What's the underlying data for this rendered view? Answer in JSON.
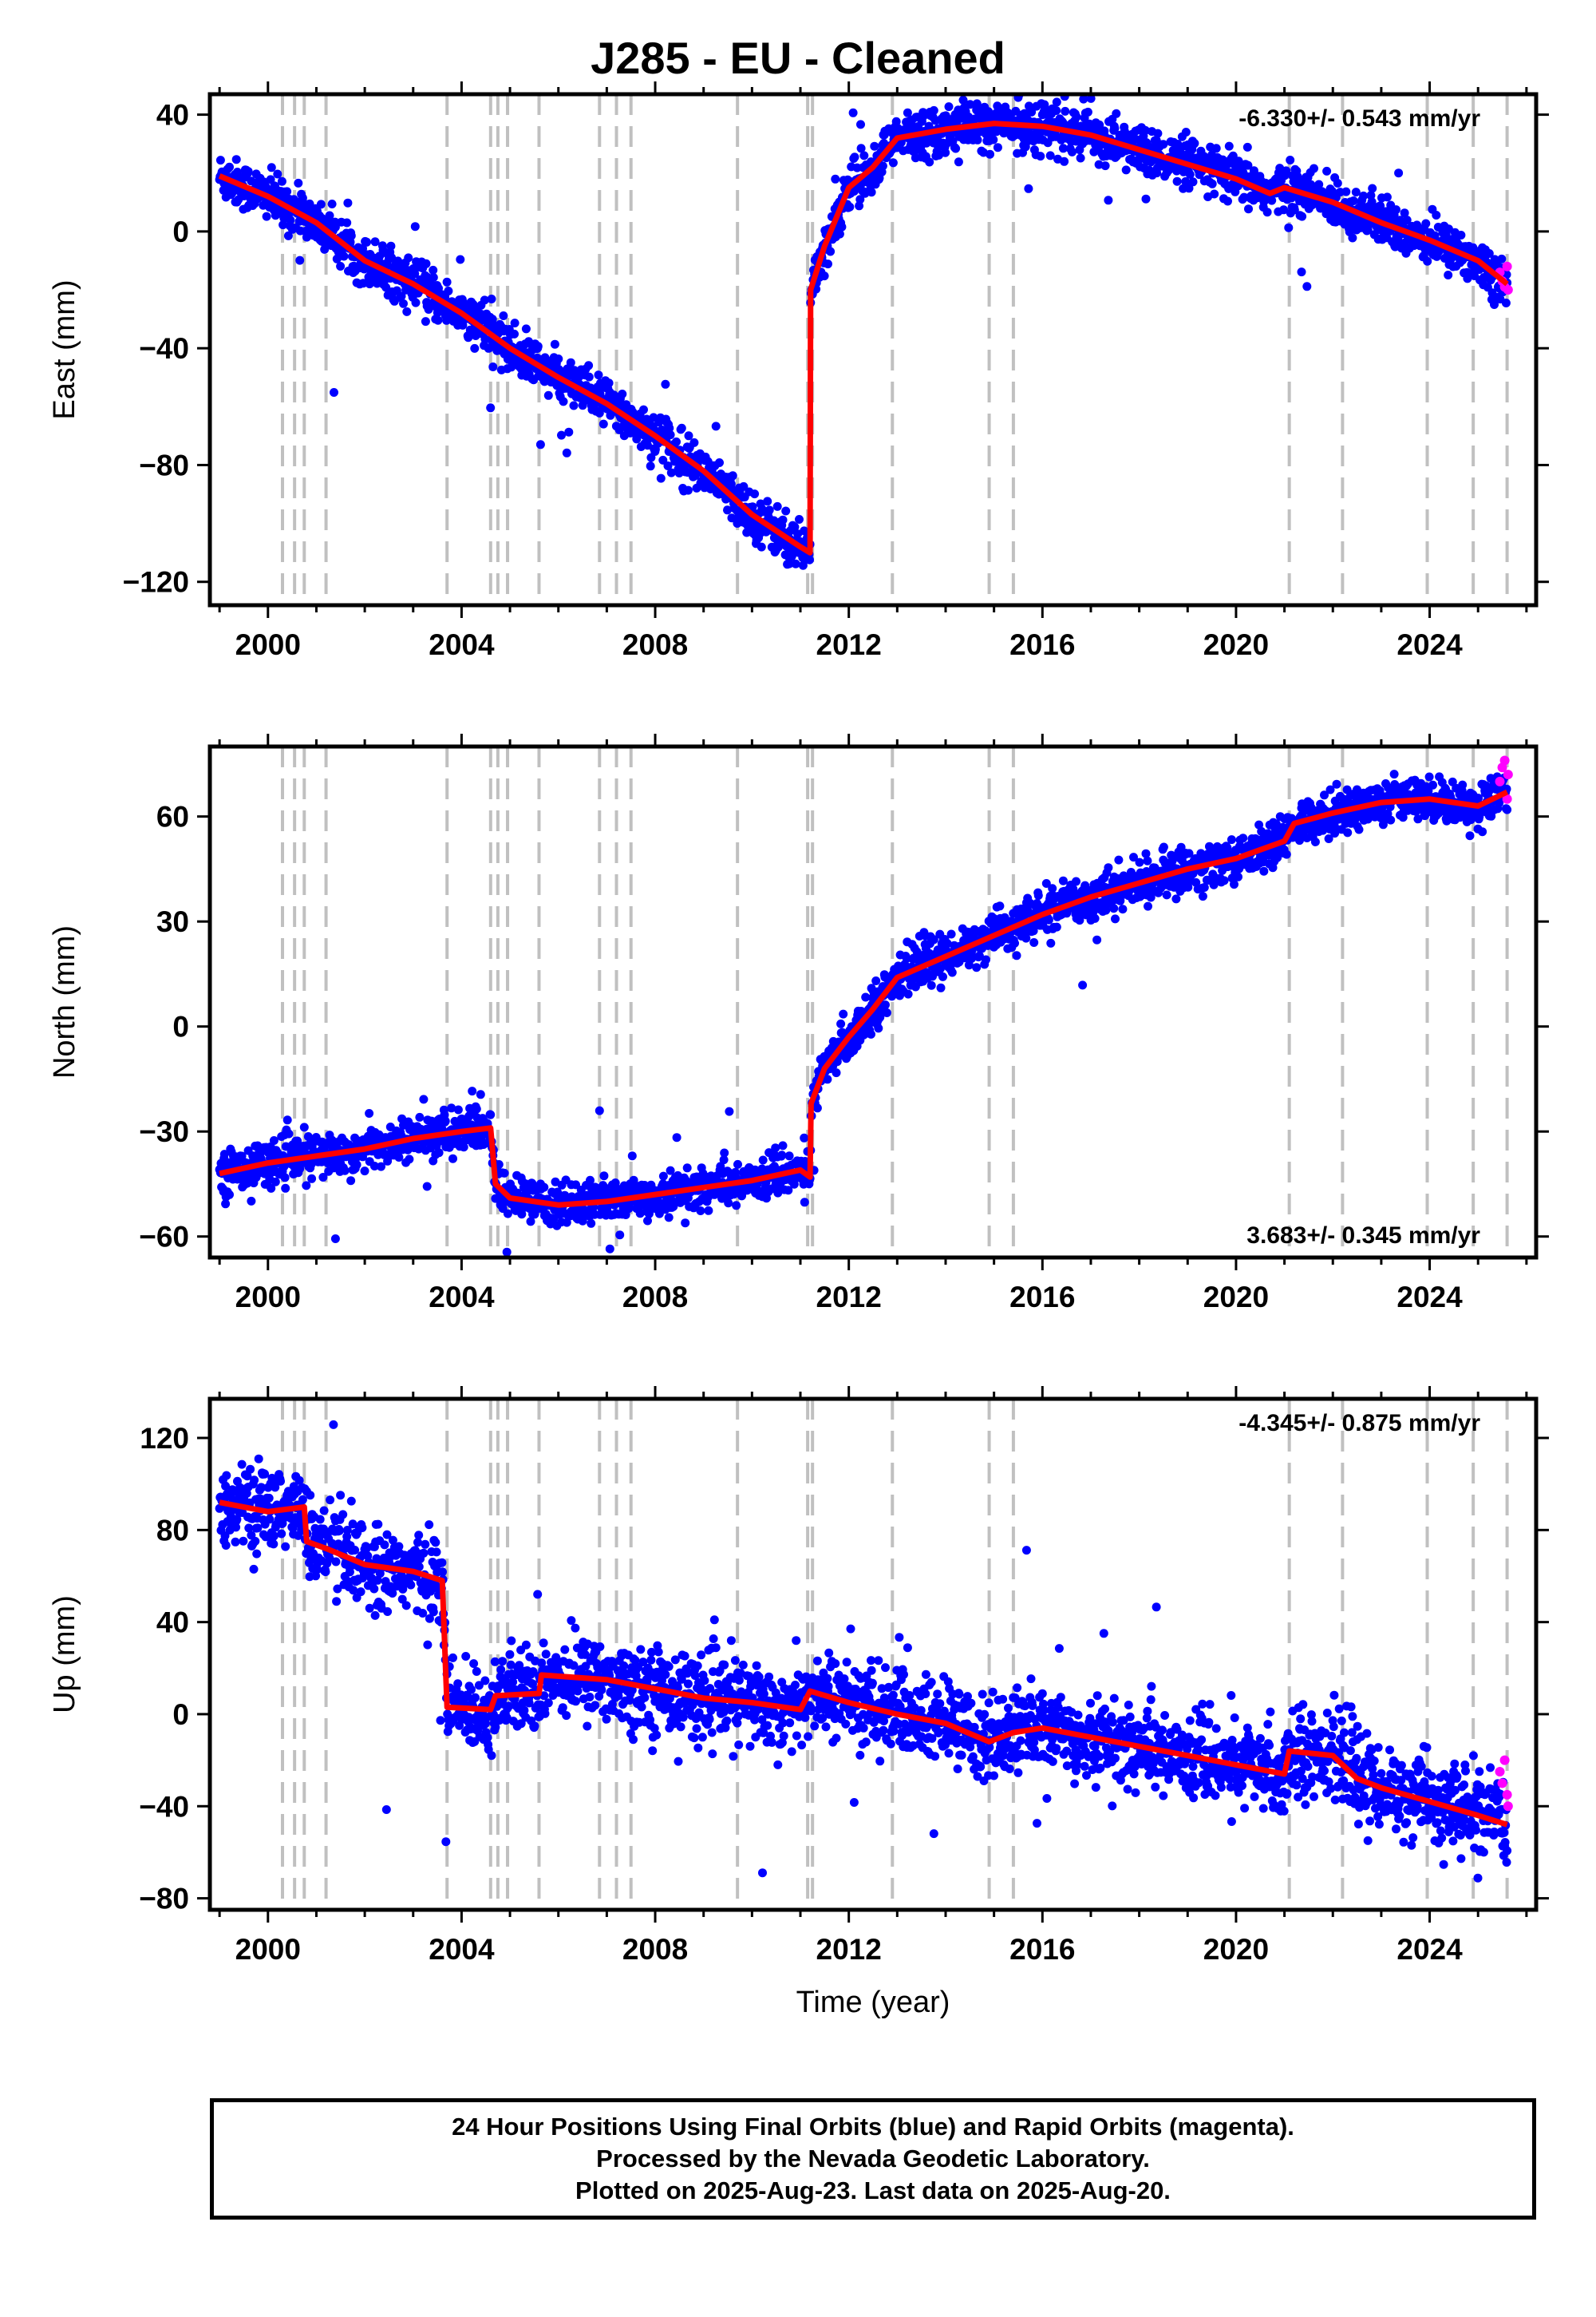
{
  "title": "J285  - EU - Cleaned",
  "xlabel": "Time (year)",
  "footer": [
    "24 Hour Positions Using Final Orbits (blue) and Rapid Orbits (magenta).",
    "Processed by the Nevada Geodetic Laboratory.",
    "Plotted on 2025-Aug-23. Last data on 2025-Aug-20."
  ],
  "colors": {
    "final": "#0000ff",
    "rapid": "#ff00ff",
    "model": "#ff0000",
    "events": "#c0c0c0"
  },
  "chart_data": [
    {
      "type": "scatter",
      "ylabel": "East (mm)",
      "rate_text": "-6.330+/- 0.543 mm/yr",
      "rate_position": "top-right",
      "xlim": [
        1998.8,
        2026.2
      ],
      "ylim": [
        -128,
        47
      ],
      "xticks": [
        2000,
        2004,
        2008,
        2012,
        2016,
        2020,
        2024
      ],
      "yticks": [
        -120,
        -80,
        -40,
        0,
        40
      ],
      "event_lines": [
        2000.3,
        2000.55,
        2000.75,
        2001.2,
        2003.7,
        2004.6,
        2004.75,
        2004.95,
        2005.6,
        2006.85,
        2007.2,
        2007.5,
        2009.7,
        2011.15,
        2011.25,
        2012.9,
        2014.9,
        2015.4,
        2021.1,
        2022.2,
        2023.95,
        2024.9,
        2025.6
      ],
      "model": [
        [
          1999.0,
          19
        ],
        [
          2000.0,
          12
        ],
        [
          2001.0,
          3
        ],
        [
          2002.0,
          -10
        ],
        [
          2003.0,
          -18
        ],
        [
          2004.0,
          -28
        ],
        [
          2005.0,
          -40
        ],
        [
          2006.0,
          -50
        ],
        [
          2007.0,
          -59
        ],
        [
          2008.0,
          -70
        ],
        [
          2009.0,
          -82
        ],
        [
          2010.0,
          -97
        ],
        [
          2011.0,
          -108
        ],
        [
          2011.2,
          -110
        ],
        [
          2011.21,
          -20
        ],
        [
          2011.5,
          -5
        ],
        [
          2012.0,
          15
        ],
        [
          2012.5,
          22
        ],
        [
          2013.0,
          32
        ],
        [
          2014.0,
          35
        ],
        [
          2015.0,
          37
        ],
        [
          2016.0,
          36
        ],
        [
          2017.0,
          33
        ],
        [
          2018.0,
          28
        ],
        [
          2019.0,
          23
        ],
        [
          2020.0,
          18
        ],
        [
          2020.7,
          13
        ],
        [
          2021.0,
          15
        ],
        [
          2022.0,
          10
        ],
        [
          2023.0,
          3
        ],
        [
          2024.0,
          -3
        ],
        [
          2025.0,
          -10
        ],
        [
          2025.6,
          -18
        ]
      ],
      "scatter_spread": 4,
      "rapid": [
        [
          2025.45,
          -14
        ],
        [
          2025.5,
          -17
        ],
        [
          2025.55,
          -19
        ],
        [
          2025.6,
          -12
        ],
        [
          2025.62,
          -20
        ]
      ]
    },
    {
      "type": "scatter",
      "ylabel": "North (mm)",
      "rate_text": "3.683+/- 0.345 mm/yr",
      "rate_position": "bottom-right",
      "xlim": [
        1998.8,
        2026.2
      ],
      "ylim": [
        -66,
        80
      ],
      "xticks": [
        2000,
        2004,
        2008,
        2012,
        2016,
        2020,
        2024
      ],
      "yticks": [
        -60,
        -30,
        0,
        30,
        60
      ],
      "event_lines": [
        2000.3,
        2000.55,
        2000.75,
        2001.2,
        2003.7,
        2004.6,
        2004.75,
        2004.95,
        2005.6,
        2006.85,
        2007.2,
        2007.5,
        2009.7,
        2011.15,
        2011.25,
        2012.9,
        2014.9,
        2015.4,
        2021.1,
        2022.2,
        2023.95,
        2024.9,
        2025.6
      ],
      "model": [
        [
          1999.0,
          -42
        ],
        [
          2000.0,
          -39
        ],
        [
          2001.0,
          -37
        ],
        [
          2002.0,
          -35
        ],
        [
          2003.0,
          -32
        ],
        [
          2004.0,
          -30
        ],
        [
          2004.6,
          -29
        ],
        [
          2004.7,
          -45
        ],
        [
          2005.0,
          -49
        ],
        [
          2006.0,
          -51
        ],
        [
          2007.0,
          -50
        ],
        [
          2008.0,
          -48
        ],
        [
          2009.0,
          -46
        ],
        [
          2010.0,
          -44
        ],
        [
          2011.0,
          -41
        ],
        [
          2011.2,
          -43
        ],
        [
          2011.22,
          -22
        ],
        [
          2011.5,
          -12
        ],
        [
          2012.0,
          -3
        ],
        [
          2012.5,
          5
        ],
        [
          2013.0,
          14
        ],
        [
          2014.0,
          20
        ],
        [
          2015.0,
          26
        ],
        [
          2016.0,
          32
        ],
        [
          2017.0,
          37
        ],
        [
          2018.0,
          41
        ],
        [
          2019.0,
          45
        ],
        [
          2020.0,
          48
        ],
        [
          2021.0,
          53
        ],
        [
          2021.2,
          58
        ],
        [
          2022.0,
          61
        ],
        [
          2023.0,
          64
        ],
        [
          2024.0,
          65
        ],
        [
          2025.0,
          63
        ],
        [
          2025.6,
          67
        ]
      ],
      "scatter_spread": 3,
      "rapid": [
        [
          2025.45,
          70
        ],
        [
          2025.5,
          74
        ],
        [
          2025.55,
          76
        ],
        [
          2025.6,
          65
        ],
        [
          2025.62,
          72
        ]
      ]
    },
    {
      "type": "scatter",
      "ylabel": "Up (mm)",
      "rate_text": "-4.345+/- 0.875 mm/yr",
      "rate_position": "top-right",
      "xlim": [
        1998.8,
        2026.2
      ],
      "ylim": [
        -85,
        137
      ],
      "xticks": [
        2000,
        2004,
        2008,
        2012,
        2016,
        2020,
        2024
      ],
      "yticks": [
        -80,
        -40,
        0,
        40,
        80,
        120
      ],
      "event_lines": [
        2000.3,
        2000.55,
        2000.75,
        2001.2,
        2003.7,
        2004.6,
        2004.75,
        2004.95,
        2005.6,
        2006.85,
        2007.2,
        2007.5,
        2009.7,
        2011.15,
        2011.25,
        2012.9,
        2014.9,
        2015.4,
        2021.1,
        2022.2,
        2023.95,
        2024.9,
        2025.6
      ],
      "model": [
        [
          1999.0,
          92
        ],
        [
          2000.0,
          88
        ],
        [
          2000.75,
          90
        ],
        [
          2000.8,
          75
        ],
        [
          2001.2,
          72
        ],
        [
          2002.0,
          65
        ],
        [
          2003.0,
          62
        ],
        [
          2003.6,
          58
        ],
        [
          2003.7,
          3
        ],
        [
          2004.6,
          2
        ],
        [
          2004.7,
          8
        ],
        [
          2005.6,
          9
        ],
        [
          2005.65,
          17
        ],
        [
          2007.0,
          15
        ],
        [
          2008.0,
          11
        ],
        [
          2009.0,
          7
        ],
        [
          2010.0,
          5
        ],
        [
          2011.0,
          2
        ],
        [
          2011.2,
          10
        ],
        [
          2012.0,
          5
        ],
        [
          2013.0,
          0
        ],
        [
          2014.0,
          -4
        ],
        [
          2014.9,
          -12
        ],
        [
          2015.4,
          -8
        ],
        [
          2016.0,
          -6
        ],
        [
          2017.0,
          -10
        ],
        [
          2018.0,
          -14
        ],
        [
          2019.0,
          -18
        ],
        [
          2020.0,
          -22
        ],
        [
          2021.0,
          -26
        ],
        [
          2021.1,
          -16
        ],
        [
          2022.0,
          -18
        ],
        [
          2022.5,
          -28
        ],
        [
          2023.0,
          -32
        ],
        [
          2024.0,
          -38
        ],
        [
          2025.0,
          -44
        ],
        [
          2025.6,
          -48
        ]
      ],
      "scatter_spread": 9,
      "rapid": [
        [
          2025.45,
          -25
        ],
        [
          2025.5,
          -30
        ],
        [
          2025.55,
          -20
        ],
        [
          2025.6,
          -35
        ],
        [
          2025.62,
          -40
        ]
      ]
    }
  ]
}
